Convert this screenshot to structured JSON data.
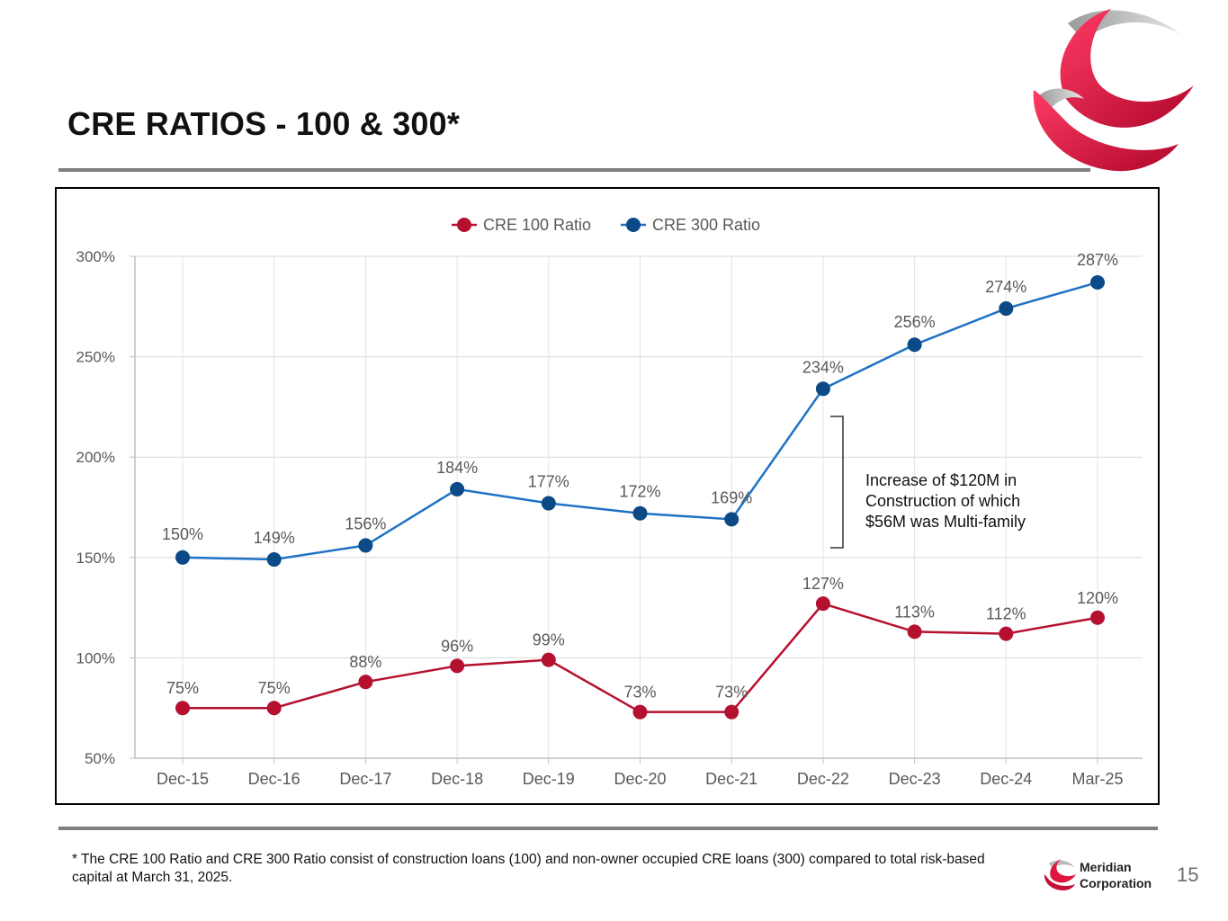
{
  "slide": {
    "title": "CRE RATIOS - 100 & 300*",
    "footnote": "* The CRE 100 Ratio and CRE 300 Ratio consist of construction loans (100) and non-owner occupied CRE loans (300) compared to total risk-based capital at March 31, 2025.",
    "brand_line1": "Meridian",
    "brand_line2": "Corporation",
    "page_number": "15"
  },
  "colors": {
    "cre100": "#b5102f",
    "cre300": "#0b4a86",
    "cre300_line": "#1f72c4",
    "brand_red": "#e0153f"
  },
  "icons": {
    "large_logo": "swirl-logo-icon",
    "small_logo": "swirl-logo-icon"
  },
  "chart_data": {
    "type": "line",
    "title": "",
    "xlabel": "",
    "ylabel": "",
    "categories": [
      "Dec-15",
      "Dec-16",
      "Dec-17",
      "Dec-18",
      "Dec-19",
      "Dec-20",
      "Dec-21",
      "Dec-22",
      "Dec-23",
      "Dec-24",
      "Mar-25"
    ],
    "series": [
      {
        "name": "CRE 100 Ratio",
        "values": [
          75,
          75,
          88,
          96,
          99,
          73,
          73,
          127,
          113,
          112,
          120
        ],
        "labels": [
          "75%",
          "75%",
          "88%",
          "96%",
          "99%",
          "73%",
          "73%",
          "127%",
          "113%",
          "112%",
          "120%"
        ]
      },
      {
        "name": "CRE 300 Ratio",
        "values": [
          150,
          149,
          156,
          184,
          177,
          172,
          169,
          234,
          256,
          274,
          287
        ],
        "labels": [
          "150%",
          "149%",
          "156%",
          "184%",
          "177%",
          "172%",
          "169%",
          "234%",
          "256%",
          "274%",
          "287%"
        ]
      }
    ],
    "ylim": [
      50,
      300
    ],
    "yticks": [
      50,
      100,
      150,
      200,
      250,
      300
    ],
    "ytick_labels": [
      "50%",
      "100%",
      "150%",
      "200%",
      "250%",
      "300%"
    ],
    "grid": true,
    "legend": "top-center",
    "annotation": {
      "text_lines": [
        "Increase of $120M in",
        "Construction of which",
        "$56M was Multi-family"
      ],
      "bracket_from": 234,
      "bracket_to": 169,
      "category": "Dec-22"
    }
  }
}
